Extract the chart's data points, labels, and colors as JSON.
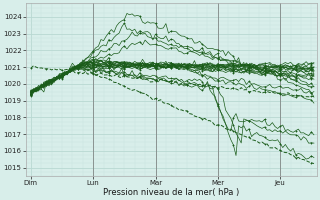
{
  "title": "",
  "xlabel": "Pression niveau de la mer( hPa )",
  "ylabel": "",
  "background_color": "#d8eeea",
  "plot_bg_color": "#d8eeea",
  "grid_major_color": "#b8d8d2",
  "grid_minor_color": "#c8e4de",
  "line_color": "#1a5c1a",
  "ylim": [
    1014.5,
    1024.8
  ],
  "ytick_min": 1015,
  "ytick_max": 1024,
  "days": [
    "Dim",
    "Lun",
    "Mar",
    "Mer",
    "Jeu"
  ],
  "day_positions": [
    0,
    24,
    48,
    72,
    96
  ],
  "xlim": [
    -2,
    110
  ],
  "num_points": 110
}
